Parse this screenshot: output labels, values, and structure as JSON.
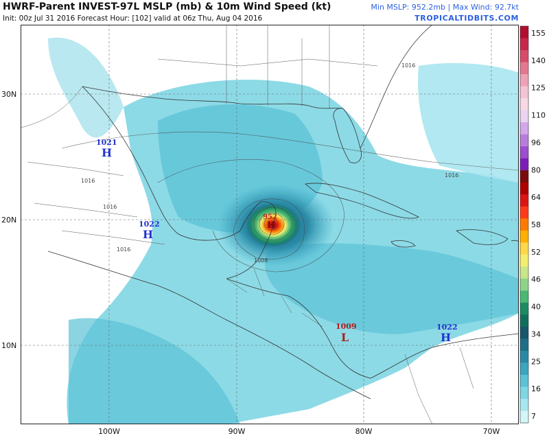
{
  "header": {
    "title": "HWRF-Parent INVEST-97L MSLP (mb) & 10m Wind Speed (kt)",
    "subtitle": "Init: 00z Jul 31 2016   Forecast Hour: [102]   valid at 06z Thu, Aug 04 2016",
    "stats": "Min MSLP: 952.2mb | Max Wind: 92.7kt",
    "brand": "TROPICALTIDBITS.COM"
  },
  "colorbar": {
    "labels": [
      "155",
      "140",
      "125",
      "110",
      "96",
      "80",
      "64",
      "58",
      "52",
      "46",
      "40",
      "34",
      "25",
      "16",
      "7"
    ],
    "colors": [
      "#b30d2e",
      "#c7264a",
      "#d64c68",
      "#e37790",
      "#eea2b7",
      "#f3c4d6",
      "#f7d9e6",
      "#e9d4f2",
      "#d3a8ea",
      "#b77ddb",
      "#9b4fcd",
      "#7c1fb8",
      "#7a0c0c",
      "#b00000",
      "#dd1414",
      "#ff3a1a",
      "#ff7a00",
      "#ffb000",
      "#ffd84a",
      "#f4ee6e",
      "#c8e68a",
      "#8dd38a",
      "#4bb874",
      "#1c8b62",
      "#116e5c",
      "#17566b",
      "#1f6e88",
      "#2a8aa6",
      "#3aa6c2",
      "#5bc2d6",
      "#80d6e3",
      "#a8e6ef",
      "#d4f5f8"
    ]
  },
  "axes": {
    "lat_labels": [
      "30N",
      "20N",
      "10N"
    ],
    "lon_labels": [
      "100W",
      "90W",
      "80W",
      "70W"
    ]
  },
  "pressure_centers": [
    {
      "type": "H",
      "value": "1021",
      "color": "#2233cc"
    },
    {
      "type": "H",
      "value": "1022",
      "color": "#2233cc"
    },
    {
      "type": "H",
      "value": "952",
      "color": "#cc2222"
    },
    {
      "type": "L",
      "value": "1009",
      "color": "#b31b1b"
    },
    {
      "type": "H",
      "value": "1022",
      "color": "#2233cc"
    }
  ],
  "isobar_labels": [
    "1016",
    "1016",
    "1016",
    "1016",
    "1016",
    "1008"
  ]
}
